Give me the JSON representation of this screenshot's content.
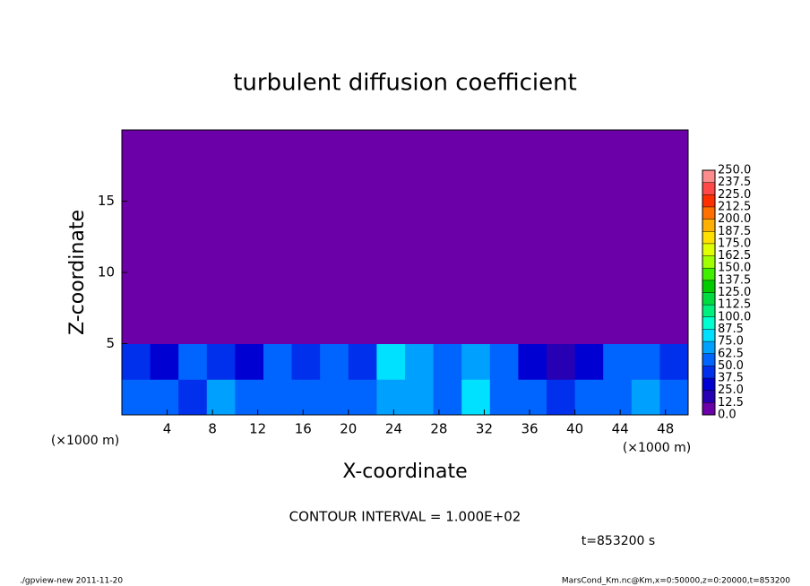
{
  "chart_data": {
    "type": "contour",
    "title": "turbulent diffusion coefficient",
    "x_label": "X-coordinate",
    "y_label": "Z-coordinate",
    "x_unit": "(×1000 m)",
    "y_unit": "(×1000 m)",
    "xlim": [
      0,
      50
    ],
    "xticks": [
      4,
      8,
      12,
      16,
      20,
      24,
      28,
      32,
      36,
      40,
      44,
      48
    ],
    "ylim": [
      0,
      20
    ],
    "yticks": [
      5,
      10,
      15
    ],
    "contour_interval": "CONTOUR INTERVAL = 1.000E+02",
    "time_label": "t=853200 s",
    "footer_left": "./gpview-new  2011-11-20",
    "footer_right": "MarsCond_Km.nc@Km,x=0:50000,z=0:20000,t=853200",
    "field": {
      "x": [
        1.25,
        3.75,
        6.25,
        8.75,
        11.25,
        13.75,
        16.25,
        18.75,
        21.25,
        23.75,
        26.25,
        28.75,
        31.25,
        33.75,
        36.25,
        38.75,
        41.25,
        43.75,
        46.25,
        48.75
      ],
      "z": [
        1.25,
        3.75,
        6.25,
        8.75,
        11.25,
        13.75,
        16.25,
        18.75
      ],
      "values": [
        [
          60,
          55,
          45,
          70,
          60,
          50,
          55,
          60,
          50,
          70,
          65,
          55,
          75,
          60,
          50,
          45,
          55,
          60,
          65,
          50
        ],
        [
          45,
          35,
          55,
          40,
          30,
          60,
          45,
          50,
          40,
          75,
          65,
          60,
          70,
          55,
          35,
          20,
          30,
          55,
          50,
          40
        ],
        [
          5,
          0,
          0,
          5,
          5,
          0,
          0,
          0,
          0,
          0,
          0,
          10,
          5,
          0,
          0,
          0,
          0,
          0,
          0,
          0
        ],
        [
          0,
          0,
          0,
          0,
          0,
          0,
          0,
          0,
          0,
          0,
          0,
          0,
          0,
          0,
          0,
          0,
          0,
          0,
          0,
          0
        ],
        [
          0,
          0,
          0,
          0,
          0,
          0,
          0,
          0,
          0,
          0,
          0,
          0,
          0,
          0,
          0,
          0,
          0,
          0,
          0,
          0
        ],
        [
          0,
          0,
          0,
          0,
          0,
          0,
          0,
          0,
          0,
          0,
          0,
          0,
          0,
          0,
          0,
          0,
          0,
          0,
          0,
          0
        ],
        [
          0,
          0,
          0,
          0,
          0,
          0,
          0,
          0,
          0,
          0,
          0,
          0,
          0,
          0,
          0,
          0,
          0,
          0,
          0,
          0
        ],
        [
          0,
          0,
          0,
          0,
          0,
          0,
          0,
          0,
          0,
          0,
          0,
          0,
          0,
          0,
          0,
          0,
          0,
          0,
          0,
          0
        ]
      ]
    },
    "colorbar": {
      "levels": [
        {
          "value": 0,
          "label": "0.0"
        },
        {
          "value": 12.5,
          "label": "12.5"
        },
        {
          "value": 25,
          "label": "25.0"
        },
        {
          "value": 37.5,
          "label": "37.5"
        },
        {
          "value": 50,
          "label": "50.0"
        },
        {
          "value": 62.5,
          "label": "62.5"
        },
        {
          "value": 75,
          "label": "75.0"
        },
        {
          "value": 87.5,
          "label": "87.5"
        },
        {
          "value": 100,
          "label": "100.0"
        },
        {
          "value": 112.5,
          "label": "112.5"
        },
        {
          "value": 125,
          "label": "125.0"
        },
        {
          "value": 137.5,
          "label": "137.5"
        },
        {
          "value": 150,
          "label": "150.0"
        },
        {
          "value": 162.5,
          "label": "162.5"
        },
        {
          "value": 175,
          "label": "175.0"
        },
        {
          "value": 187.5,
          "label": "187.5"
        },
        {
          "value": 200,
          "label": "200.0"
        },
        {
          "value": 212.5,
          "label": "212.5"
        },
        {
          "value": 225,
          "label": "225.0"
        },
        {
          "value": 237.5,
          "label": "237.5"
        },
        {
          "value": 250,
          "label": "250.0"
        }
      ],
      "colors": [
        "#6c00a8",
        "#2800b4",
        "#0000d2",
        "#0030ec",
        "#0064ff",
        "#00a0ff",
        "#00e0ff",
        "#00ffd0",
        "#00f080",
        "#00dc40",
        "#00cc00",
        "#40f000",
        "#a0ff00",
        "#e0ff00",
        "#ffe000",
        "#ffb000",
        "#ff7000",
        "#ff3000",
        "#ff4848",
        "#ff8c8c"
      ]
    }
  }
}
